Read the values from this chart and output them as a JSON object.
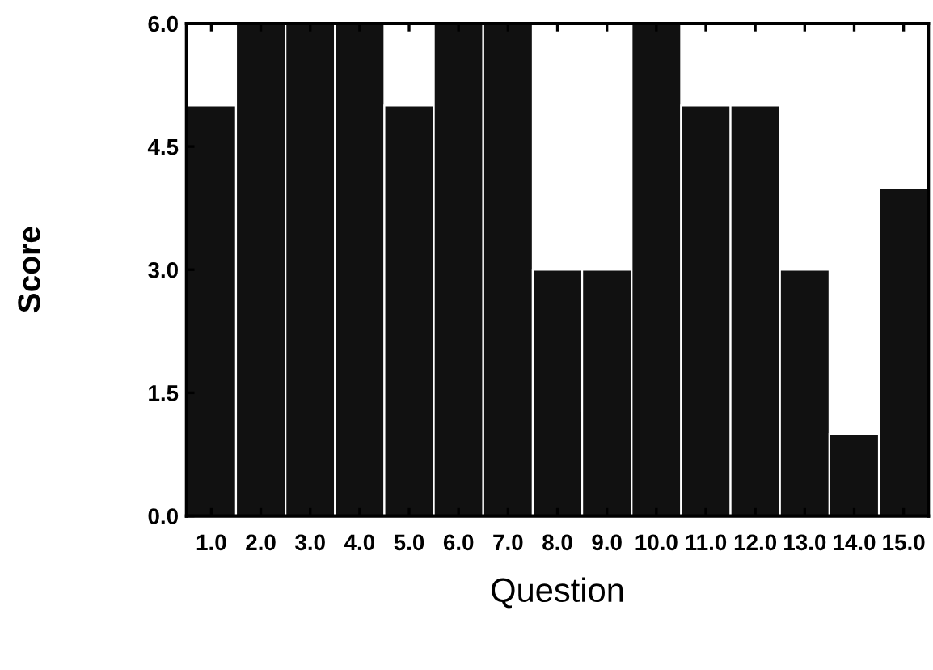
{
  "chart_data": {
    "type": "bar",
    "xlabel": "Question",
    "ylabel": "Score",
    "categories": [
      "1.0",
      "2.0",
      "3.0",
      "4.0",
      "5.0",
      "6.0",
      "7.0",
      "8.0",
      "9.0",
      "10.0",
      "11.0",
      "12.0",
      "13.0",
      "14.0",
      "15.0"
    ],
    "values": [
      5,
      6,
      6,
      6,
      5,
      6,
      6,
      3,
      3,
      6,
      5,
      5,
      3,
      1,
      4
    ],
    "color": "#111111",
    "ylim": [
      0,
      6
    ],
    "yticks": [
      {
        "value": 0,
        "label": "0.0"
      },
      {
        "value": 1.5,
        "label": "1.5"
      },
      {
        "value": 3,
        "label": "3.0"
      },
      {
        "value": 4.5,
        "label": "4.5"
      },
      {
        "value": 6,
        "label": "6.0"
      }
    ],
    "grid": false,
    "legend": false
  }
}
